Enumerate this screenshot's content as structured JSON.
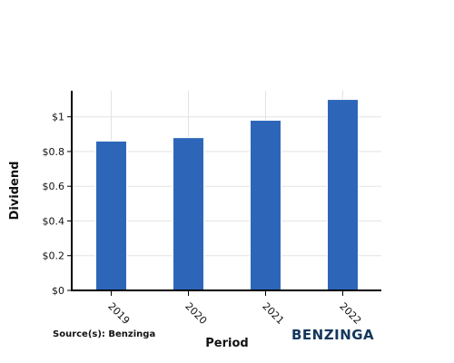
{
  "chart_data": {
    "type": "bar",
    "title": "",
    "xlabel": "Period",
    "ylabel": "Dividend",
    "categories": [
      "2019",
      "2020",
      "2021",
      "2022"
    ],
    "values": [
      0.86,
      0.88,
      0.98,
      1.1
    ],
    "ylim": [
      0,
      1.15
    ],
    "yticks": [
      {
        "value": 0,
        "label": "$0"
      },
      {
        "value": 0.2,
        "label": "$0.2"
      },
      {
        "value": 0.4,
        "label": "$0.4"
      },
      {
        "value": 0.6,
        "label": "$0.6"
      },
      {
        "value": 0.8,
        "label": "$0.8"
      },
      {
        "value": 1.0,
        "label": "$1"
      }
    ],
    "grid": true,
    "bar_color": "#2d66b9"
  },
  "footer": {
    "source": "Source(s): Benzinga",
    "logo_text": "BENZINGA",
    "logo_color": "#14375c"
  }
}
